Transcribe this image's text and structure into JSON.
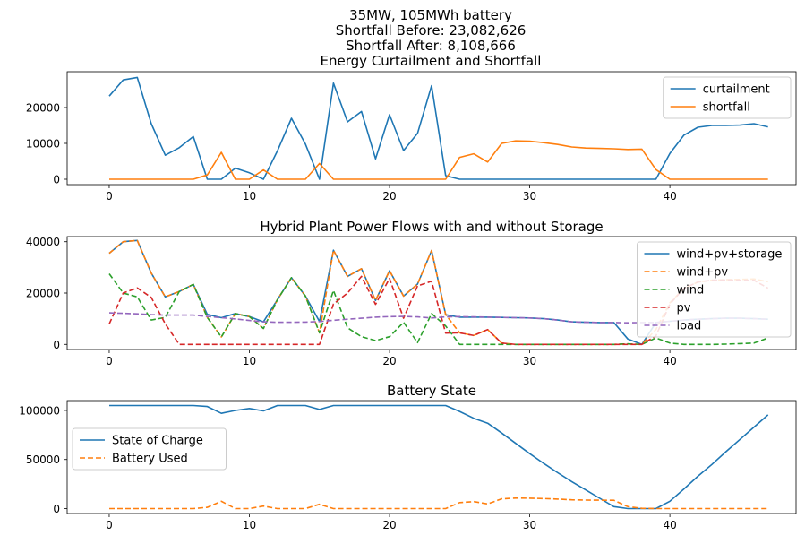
{
  "figure": {
    "title_lines": [
      "35MW, 105MWh battery",
      "Shortfall Before: 23,082,626",
      "Shortfall After: 8,108,666",
      "Energy Curtailment and Shortfall"
    ]
  },
  "chart_data": [
    {
      "type": "line",
      "title": "",
      "xlabel": "",
      "ylabel": "",
      "xlim": [
        -3,
        49
      ],
      "ylim": [
        -1500,
        30000
      ],
      "xticks": [
        0,
        10,
        20,
        30,
        40
      ],
      "yticks": [
        0,
        10000,
        20000
      ],
      "ytick_labels": [
        "0",
        "10000",
        "20000"
      ],
      "legend_position": "top-right",
      "legend_top_offset": 0,
      "series": [
        {
          "name": "curtailment",
          "color": "#1f77b4",
          "dashed": false,
          "values": [
            23200,
            27700,
            28400,
            15500,
            6700,
            8800,
            11900,
            0,
            0,
            3100,
            1800,
            0,
            7900,
            17000,
            9800,
            0,
            26800,
            16000,
            18900,
            5700,
            18000,
            8000,
            12800,
            26100,
            1000,
            0,
            0,
            0,
            0,
            0,
            0,
            0,
            0,
            0,
            0,
            0,
            0,
            0,
            0,
            0,
            7200,
            12300,
            14500,
            15000,
            15000,
            15100,
            15500,
            14600
          ]
        },
        {
          "name": "shortfall",
          "color": "#ff7f0e",
          "dashed": false,
          "values": [
            0,
            0,
            0,
            0,
            0,
            0,
            0,
            1200,
            7500,
            0,
            0,
            2600,
            0,
            0,
            0,
            4400,
            0,
            0,
            0,
            0,
            0,
            0,
            0,
            0,
            0,
            6100,
            7100,
            4800,
            10000,
            10700,
            10600,
            10200,
            9700,
            9000,
            8700,
            8600,
            8500,
            8300,
            8400,
            2700,
            0,
            0,
            0,
            0,
            0,
            0,
            0,
            0
          ]
        }
      ]
    },
    {
      "type": "line",
      "title": "Hybrid Plant Power Flows with and without Storage",
      "xlabel": "",
      "ylabel": "",
      "xlim": [
        -3,
        49
      ],
      "ylim": [
        -2000,
        42000
      ],
      "xticks": [
        0,
        10,
        20,
        30,
        40
      ],
      "yticks": [
        0,
        20000,
        40000
      ],
      "ytick_labels": [
        "0",
        "20000",
        "40000"
      ],
      "legend_position": "top-right",
      "legend_top_offset": 0,
      "series": [
        {
          "name": "wind+pv+storage",
          "color": "#1f77b4",
          "dashed": false,
          "values": [
            35500,
            40000,
            40500,
            27800,
            18500,
            20600,
            23400,
            11700,
            10400,
            12000,
            10800,
            8800,
            17400,
            26000,
            18800,
            8900,
            36700,
            26500,
            29500,
            17100,
            28700,
            18800,
            23500,
            36600,
            11600,
            10600,
            10600,
            10600,
            10500,
            10400,
            10300,
            10000,
            9500,
            8800,
            8600,
            8500,
            8500,
            2100,
            0,
            8500,
            9000,
            9500,
            9800,
            10000,
            10200,
            10200,
            10000,
            9800
          ]
        },
        {
          "name": "wind+pv",
          "color": "#ff7f0e",
          "dashed": true,
          "values": [
            35500,
            40000,
            40500,
            27800,
            18500,
            20600,
            23400,
            10500,
            2900,
            12000,
            10800,
            6200,
            17400,
            26000,
            18800,
            4500,
            36700,
            26500,
            29500,
            17100,
            28700,
            18800,
            23500,
            36600,
            11600,
            4500,
            3500,
            5800,
            500,
            0,
            0,
            0,
            0,
            0,
            0,
            0,
            0,
            200,
            0,
            5800,
            16200,
            21800,
            24300,
            25000,
            25200,
            25300,
            25500,
            24400
          ]
        },
        {
          "name": "wind",
          "color": "#2ca02c",
          "dashed": true,
          "values": [
            27500,
            20000,
            18500,
            9500,
            10500,
            20600,
            23400,
            10500,
            2900,
            12000,
            10800,
            6200,
            17400,
            26000,
            18800,
            4500,
            21000,
            6500,
            3000,
            1500,
            3000,
            8600,
            700,
            12000,
            7200,
            0,
            0,
            0,
            0,
            0,
            0,
            0,
            0,
            0,
            0,
            0,
            0,
            200,
            0,
            2500,
            500,
            0,
            0,
            0,
            100,
            300,
            500,
            2500
          ]
        },
        {
          "name": "pv",
          "color": "#d62728",
          "dashed": true,
          "values": [
            8000,
            20000,
            22000,
            18300,
            8000,
            0,
            0,
            0,
            0,
            0,
            0,
            0,
            0,
            0,
            0,
            0,
            15700,
            20000,
            26500,
            15600,
            25700,
            10200,
            22800,
            24600,
            4400,
            4500,
            3500,
            5800,
            500,
            0,
            0,
            0,
            0,
            0,
            0,
            0,
            0,
            0,
            0,
            3300,
            15700,
            21800,
            24300,
            25000,
            25100,
            25000,
            25000,
            21900
          ]
        },
        {
          "name": "load",
          "color": "#9467bd",
          "dashed": true,
          "values": [
            12300,
            12100,
            11900,
            11600,
            11400,
            11400,
            11400,
            10900,
            10400,
            9900,
            9300,
            8800,
            8600,
            8600,
            8700,
            8900,
            9400,
            9800,
            10200,
            10600,
            10800,
            10900,
            10700,
            10300,
            10700,
            10800,
            10700,
            10600,
            10500,
            10400,
            10300,
            10000,
            9500,
            8800,
            8600,
            8500,
            8500,
            8400,
            8500,
            8500,
            9000,
            9500,
            9800,
            10000,
            10200,
            10200,
            10000,
            9800
          ]
        }
      ]
    },
    {
      "type": "line",
      "title": "Battery State",
      "xlabel": "",
      "ylabel": "",
      "xlim": [
        -3,
        49
      ],
      "ylim": [
        -5000,
        110000
      ],
      "xticks": [
        0,
        10,
        20,
        30,
        40
      ],
      "yticks": [
        0,
        50000,
        100000
      ],
      "ytick_labels": [
        "0",
        "50000",
        "100000"
      ],
      "legend_position": "center-left",
      "legend_top_offset": 31,
      "series": [
        {
          "name": "State of Charge",
          "color": "#1f77b4",
          "dashed": false,
          "values": [
            105000,
            105000,
            105000,
            105000,
            105000,
            105000,
            105000,
            104000,
            97000,
            100000,
            102000,
            99500,
            105000,
            105000,
            105000,
            101000,
            105000,
            105000,
            105000,
            105000,
            105000,
            105000,
            105000,
            105000,
            105000,
            99000,
            92000,
            87000,
            77000,
            66500,
            56000,
            46000,
            36500,
            27500,
            19000,
            10500,
            2000,
            0,
            0,
            0,
            7500,
            20000,
            33000,
            45000,
            58000,
            70500,
            83000,
            95500
          ]
        },
        {
          "name": "Battery Used",
          "color": "#ff7f0e",
          "dashed": true,
          "values": [
            0,
            0,
            0,
            0,
            0,
            0,
            0,
            1300,
            7500,
            0,
            0,
            2600,
            0,
            0,
            0,
            4400,
            0,
            0,
            0,
            0,
            0,
            0,
            0,
            0,
            0,
            6100,
            7100,
            4800,
            10000,
            10700,
            10600,
            10200,
            9700,
            9000,
            8700,
            8600,
            8500,
            2000,
            300,
            0,
            0,
            0,
            0,
            0,
            0,
            0,
            0,
            0
          ]
        }
      ]
    }
  ]
}
